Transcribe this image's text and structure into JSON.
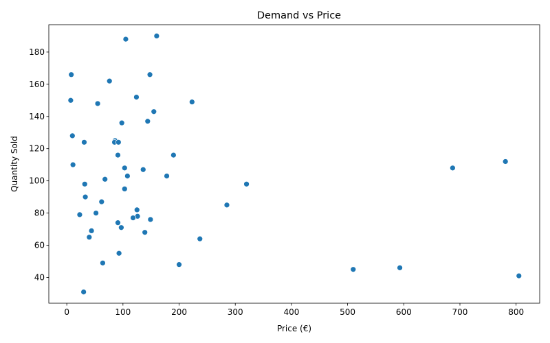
{
  "chart_data": {
    "type": "scatter",
    "title": "Demand vs Price",
    "xlabel": "Price (€)",
    "ylabel": "Quantity Sold",
    "xlim": [
      -32,
      842
    ],
    "ylim": [
      24,
      197
    ],
    "xticks": [
      0,
      100,
      200,
      300,
      400,
      500,
      600,
      700,
      800
    ],
    "yticks": [
      40,
      60,
      80,
      100,
      120,
      140,
      160,
      180
    ],
    "grid": false,
    "color": "#1f77b4",
    "points": [
      {
        "x": 105,
        "y": 188
      },
      {
        "x": 160,
        "y": 190
      },
      {
        "x": 8,
        "y": 166
      },
      {
        "x": 148,
        "y": 166
      },
      {
        "x": 76,
        "y": 162
      },
      {
        "x": 124,
        "y": 152
      },
      {
        "x": 7,
        "y": 150
      },
      {
        "x": 223,
        "y": 149
      },
      {
        "x": 55,
        "y": 148
      },
      {
        "x": 155,
        "y": 143
      },
      {
        "x": 144,
        "y": 137
      },
      {
        "x": 98,
        "y": 136
      },
      {
        "x": 10,
        "y": 128
      },
      {
        "x": 86,
        "y": 125
      },
      {
        "x": 31,
        "y": 124
      },
      {
        "x": 85,
        "y": 124
      },
      {
        "x": 92,
        "y": 124
      },
      {
        "x": 91,
        "y": 116
      },
      {
        "x": 190,
        "y": 116
      },
      {
        "x": 781,
        "y": 112
      },
      {
        "x": 11,
        "y": 110
      },
      {
        "x": 103,
        "y": 108
      },
      {
        "x": 687,
        "y": 108
      },
      {
        "x": 136,
        "y": 107
      },
      {
        "x": 108,
        "y": 103
      },
      {
        "x": 178,
        "y": 103
      },
      {
        "x": 68,
        "y": 101
      },
      {
        "x": 32,
        "y": 98
      },
      {
        "x": 320,
        "y": 98
      },
      {
        "x": 103,
        "y": 95
      },
      {
        "x": 33,
        "y": 90
      },
      {
        "x": 62,
        "y": 87
      },
      {
        "x": 285,
        "y": 85
      },
      {
        "x": 125,
        "y": 82
      },
      {
        "x": 52,
        "y": 80
      },
      {
        "x": 23,
        "y": 79
      },
      {
        "x": 126,
        "y": 78
      },
      {
        "x": 118,
        "y": 77
      },
      {
        "x": 149,
        "y": 76
      },
      {
        "x": 91,
        "y": 74
      },
      {
        "x": 97,
        "y": 71
      },
      {
        "x": 44,
        "y": 69
      },
      {
        "x": 139,
        "y": 68
      },
      {
        "x": 40,
        "y": 65
      },
      {
        "x": 237,
        "y": 64
      },
      {
        "x": 93,
        "y": 55
      },
      {
        "x": 64,
        "y": 49
      },
      {
        "x": 200,
        "y": 48
      },
      {
        "x": 593,
        "y": 46
      },
      {
        "x": 510,
        "y": 45
      },
      {
        "x": 805,
        "y": 41
      },
      {
        "x": 30,
        "y": 31
      }
    ]
  }
}
